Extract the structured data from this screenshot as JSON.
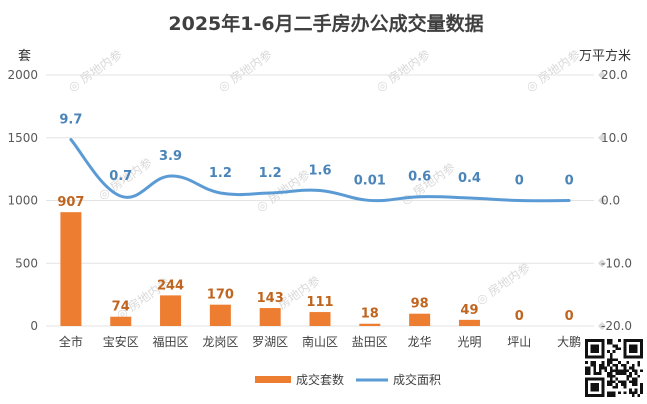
{
  "chart_data": {
    "type": "bar",
    "title": "2025年1-6月二手房办公成交量数据",
    "y_left_unit": "套",
    "y_right_unit": "万平方米",
    "ylim_left": [
      0,
      2000
    ],
    "yticks_left": [
      "0",
      "500",
      "1000",
      "1500",
      "2000"
    ],
    "ylim_right": [
      -20,
      20
    ],
    "yticks_right": [
      "-20.0",
      "-10.0",
      "0.0",
      "10.0",
      "20.0"
    ],
    "categories": [
      "全市",
      "宝安区",
      "福田区",
      "龙岗区",
      "罗湖区",
      "南山区",
      "盐田区",
      "龙华",
      "光明",
      "坪山",
      "大鹏"
    ],
    "series": [
      {
        "name": "成交套数",
        "type": "bar",
        "axis": "left",
        "color": "#ed7d31",
        "values": [
          907,
          74,
          244,
          170,
          143,
          111,
          18,
          98,
          49,
          0,
          0
        ],
        "labels": [
          "907",
          "74",
          "244",
          "170",
          "143",
          "111",
          "18",
          "98",
          "49",
          "0",
          "0"
        ]
      },
      {
        "name": "成交面积",
        "type": "line",
        "axis": "right",
        "color": "#5b9bd5",
        "values": [
          9.7,
          0.7,
          3.9,
          1.2,
          1.2,
          1.6,
          0.01,
          0.6,
          0.4,
          0,
          0
        ],
        "labels": [
          "9.7",
          "0.7",
          "3.9",
          "1.2",
          "1.2",
          "1.6",
          "0.01",
          "0.6",
          "0.4",
          "0",
          "0"
        ]
      }
    ],
    "grid": true,
    "legend_position": "bottom"
  },
  "watermark": "房地内参"
}
